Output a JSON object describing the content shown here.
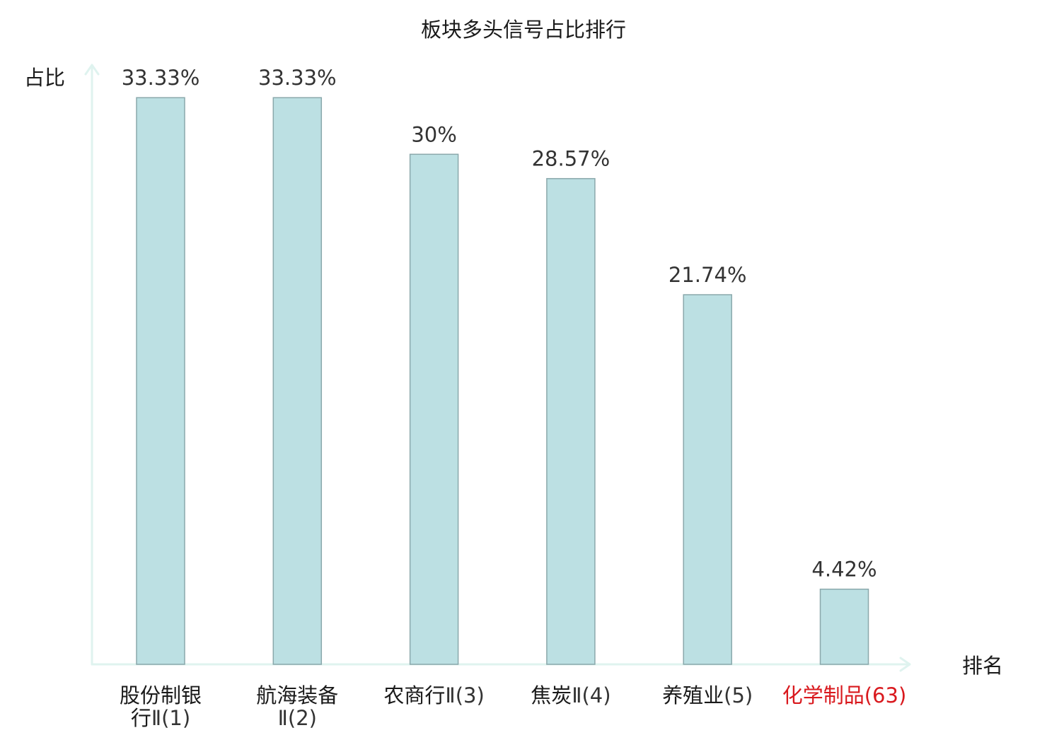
{
  "chart_data": {
    "type": "bar",
    "title": "板块多头信号占比排行",
    "ylabel": "占比",
    "xlabel": "排名",
    "categories": [
      {
        "lines": [
          {
            "name": "股份制银",
            "rank": ""
          },
          {
            "name": "行",
            "rank": "Ⅱ(1)"
          }
        ],
        "highlight": false
      },
      {
        "lines": [
          {
            "name": "航海装备",
            "rank": ""
          },
          {
            "name": "",
            "rank": "Ⅱ(2)"
          }
        ],
        "highlight": false
      },
      {
        "lines": [
          {
            "name": "农商行",
            "rank": "Ⅱ(3)"
          }
        ],
        "highlight": false
      },
      {
        "lines": [
          {
            "name": "焦炭",
            "rank": "Ⅱ(4)"
          }
        ],
        "highlight": false
      },
      {
        "lines": [
          {
            "name": "养殖业",
            "rank": "(5)"
          }
        ],
        "highlight": false
      },
      {
        "lines": [
          {
            "name": "化学制品",
            "rank": "(63)"
          }
        ],
        "highlight": true
      }
    ],
    "values": [
      33.33,
      33.33,
      30,
      28.57,
      21.74,
      4.42
    ],
    "value_labels": [
      "33.33%",
      "33.33%",
      "30%",
      "28.57%",
      "21.74%",
      "4.42%"
    ],
    "ylim": [
      0,
      35.25
    ],
    "grid": false,
    "legend": "none",
    "colors": {
      "bar_fill": "#bce0e3",
      "bar_stroke": "#8aa8ab",
      "axis": "#dff3ef",
      "highlight_label": "#d9191e"
    }
  }
}
